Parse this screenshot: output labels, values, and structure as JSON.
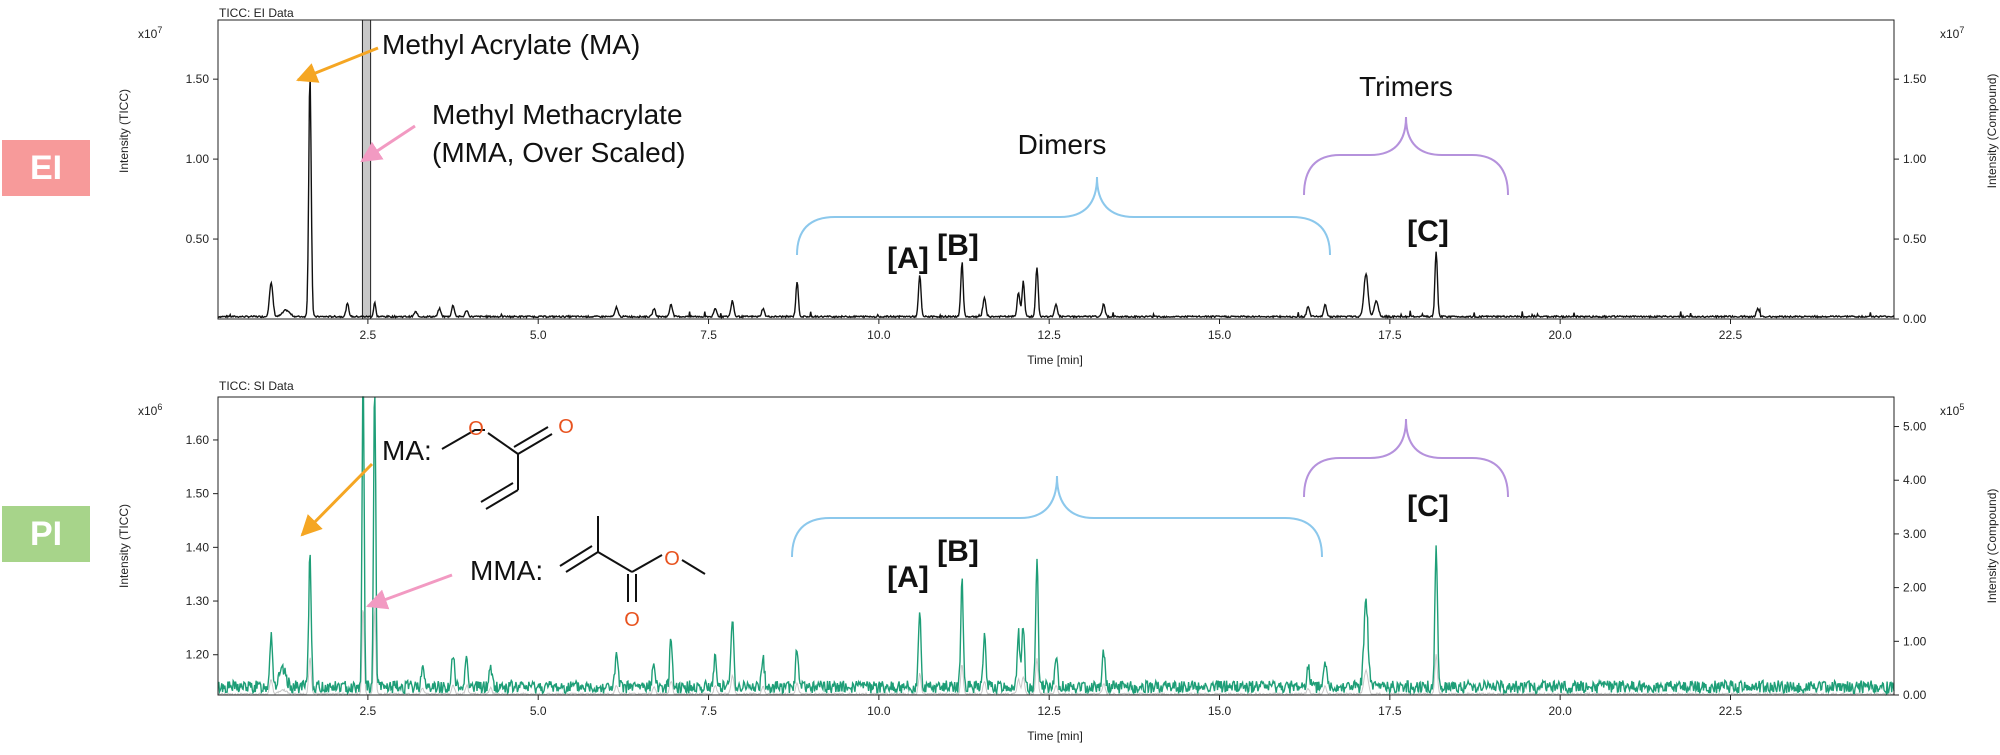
{
  "colors": {
    "ei_badge": "#F79A9A",
    "pi_badge": "#A7D48A",
    "ei_trace": "#111111",
    "pi_trace": "#1E9E77",
    "background_trace": "#C8C8C8",
    "arrow_ma": "#F5A623",
    "arrow_mma": "#F29AC2",
    "dimer_brace": "#8CC8EC",
    "trimer_brace": "#B592DC",
    "structure_oxygen": "#E8531F",
    "structure_bond": "#111111"
  },
  "badges": {
    "ei": "EI",
    "pi": "PI"
  },
  "chart_data": [
    {
      "type": "line",
      "panel_title": "TICC: EI Data",
      "xlabel": "Time [min]",
      "ylabel_left": "Intensity (TICC)",
      "ylabel_right": "Intensity (Compound)",
      "left_multiplier": "x10",
      "left_exponent": "7",
      "right_multiplier": "x10",
      "right_exponent": "7",
      "xlim": [
        0.3,
        24.9
      ],
      "ylim": [
        0,
        1.87
      ],
      "x_ticks": [
        2.5,
        5.0,
        7.5,
        10.0,
        12.5,
        15.0,
        17.5,
        20.0,
        22.5
      ],
      "x_tick_labels": [
        "2.5",
        "5.0",
        "7.5",
        "10.0",
        "12.5",
        "15.0",
        "17.5",
        "20.0",
        "22.5"
      ],
      "y_ticks_left": [
        0.5,
        1.0,
        1.5
      ],
      "y_tick_labels_left": [
        "0.50",
        "1.00",
        "1.50"
      ],
      "y_ticks_right": [
        0,
        0.5,
        1.0,
        1.5
      ],
      "y_tick_labels_right": [
        "0.00",
        "0.50",
        "1.00",
        "1.50"
      ],
      "baseline": 0.015,
      "noise": 0.005,
      "peaks": [
        [
          1.08,
          0.21,
          0.025
        ],
        [
          1.3,
          0.04,
          0.05
        ],
        [
          1.65,
          1.52,
          0.018
        ],
        [
          2.2,
          0.08,
          0.02
        ],
        [
          2.6,
          0.09,
          0.015
        ],
        [
          3.2,
          0.03,
          0.02
        ],
        [
          3.55,
          0.05,
          0.02
        ],
        [
          3.75,
          0.07,
          0.02
        ],
        [
          3.95,
          0.04,
          0.02
        ],
        [
          6.15,
          0.06,
          0.02
        ],
        [
          6.7,
          0.05,
          0.02
        ],
        [
          6.95,
          0.08,
          0.02
        ],
        [
          7.6,
          0.05,
          0.02
        ],
        [
          7.85,
          0.1,
          0.02
        ],
        [
          8.3,
          0.05,
          0.02
        ],
        [
          8.8,
          0.22,
          0.018
        ],
        [
          10.6,
          0.26,
          0.018
        ],
        [
          11.22,
          0.33,
          0.018
        ],
        [
          11.55,
          0.12,
          0.02
        ],
        [
          12.05,
          0.15,
          0.02
        ],
        [
          12.12,
          0.22,
          0.018
        ],
        [
          12.32,
          0.31,
          0.018
        ],
        [
          12.6,
          0.08,
          0.02
        ],
        [
          13.3,
          0.08,
          0.02
        ],
        [
          16.3,
          0.06,
          0.02
        ],
        [
          16.55,
          0.08,
          0.02
        ],
        [
          17.15,
          0.27,
          0.03
        ],
        [
          17.3,
          0.1,
          0.03
        ],
        [
          18.18,
          0.41,
          0.018
        ],
        [
          22.9,
          0.05,
          0.02
        ]
      ],
      "mma_band": [
        2.42,
        2.54
      ],
      "mma_band_label": "Methyl Methacrylate (MMA, Over Scaled)",
      "annotations": {
        "ma": "Methyl Acrylate (MA)",
        "mma_line1": "Methyl Methacrylate",
        "mma_line2": "(MMA, Over Scaled)",
        "dimers": "Dimers",
        "trimers": "Trimers",
        "label_a": "[A]",
        "label_b": "[B]",
        "label_c": "[C]"
      }
    },
    {
      "type": "line",
      "panel_title": "TICC: SI Data",
      "xlabel": "Time [min]",
      "ylabel_left": "Intensity (TICC)",
      "ylabel_right": "Intensity (Compound)",
      "left_multiplier": "x10",
      "left_exponent": "6",
      "right_multiplier": "x10",
      "right_exponent": "5",
      "xlim": [
        0.3,
        24.9
      ],
      "ylim": [
        1.125,
        1.68
      ],
      "right_ylim": [
        0,
        5.55
      ],
      "x_ticks": [
        2.5,
        5.0,
        7.5,
        10.0,
        12.5,
        15.0,
        17.5,
        20.0,
        22.5
      ],
      "x_tick_labels": [
        "2.5",
        "5.0",
        "7.5",
        "10.0",
        "12.5",
        "15.0",
        "17.5",
        "20.0",
        "22.5"
      ],
      "y_ticks_left": [
        1.2,
        1.3,
        1.4,
        1.5,
        1.6
      ],
      "y_tick_labels_left": [
        "1.20",
        "1.30",
        "1.40",
        "1.50",
        "1.60"
      ],
      "y_ticks_right": [
        0,
        1,
        2,
        3,
        4,
        5
      ],
      "y_tick_labels_right": [
        "0.00",
        "1.00",
        "2.00",
        "3.00",
        "4.00",
        "5.00"
      ],
      "baseline": 1.14,
      "noise": 0.012,
      "peaks": [
        [
          1.08,
          0.1,
          0.02
        ],
        [
          1.25,
          0.03,
          0.05
        ],
        [
          1.65,
          0.25,
          0.018
        ],
        [
          2.43,
          0.6,
          0.015
        ],
        [
          2.6,
          0.6,
          0.015
        ],
        [
          3.3,
          0.04,
          0.02
        ],
        [
          3.75,
          0.06,
          0.02
        ],
        [
          3.95,
          0.06,
          0.02
        ],
        [
          4.3,
          0.04,
          0.02
        ],
        [
          6.15,
          0.06,
          0.02
        ],
        [
          6.7,
          0.05,
          0.02
        ],
        [
          6.95,
          0.09,
          0.02
        ],
        [
          7.6,
          0.06,
          0.02
        ],
        [
          7.85,
          0.13,
          0.02
        ],
        [
          8.3,
          0.05,
          0.02
        ],
        [
          8.8,
          0.07,
          0.02
        ],
        [
          10.6,
          0.14,
          0.018
        ],
        [
          11.22,
          0.2,
          0.018
        ],
        [
          11.55,
          0.09,
          0.02
        ],
        [
          12.05,
          0.1,
          0.02
        ],
        [
          12.12,
          0.12,
          0.018
        ],
        [
          12.32,
          0.24,
          0.018
        ],
        [
          12.6,
          0.06,
          0.02
        ],
        [
          13.3,
          0.07,
          0.02
        ],
        [
          16.3,
          0.04,
          0.02
        ],
        [
          16.55,
          0.05,
          0.02
        ],
        [
          17.15,
          0.16,
          0.03
        ],
        [
          18.18,
          0.27,
          0.018
        ]
      ],
      "annotations": {
        "ma": "MA:",
        "mma": "MMA:",
        "label_a": "[A]",
        "label_b": "[B]",
        "label_c": "[C]",
        "oxygen": "O"
      }
    }
  ]
}
